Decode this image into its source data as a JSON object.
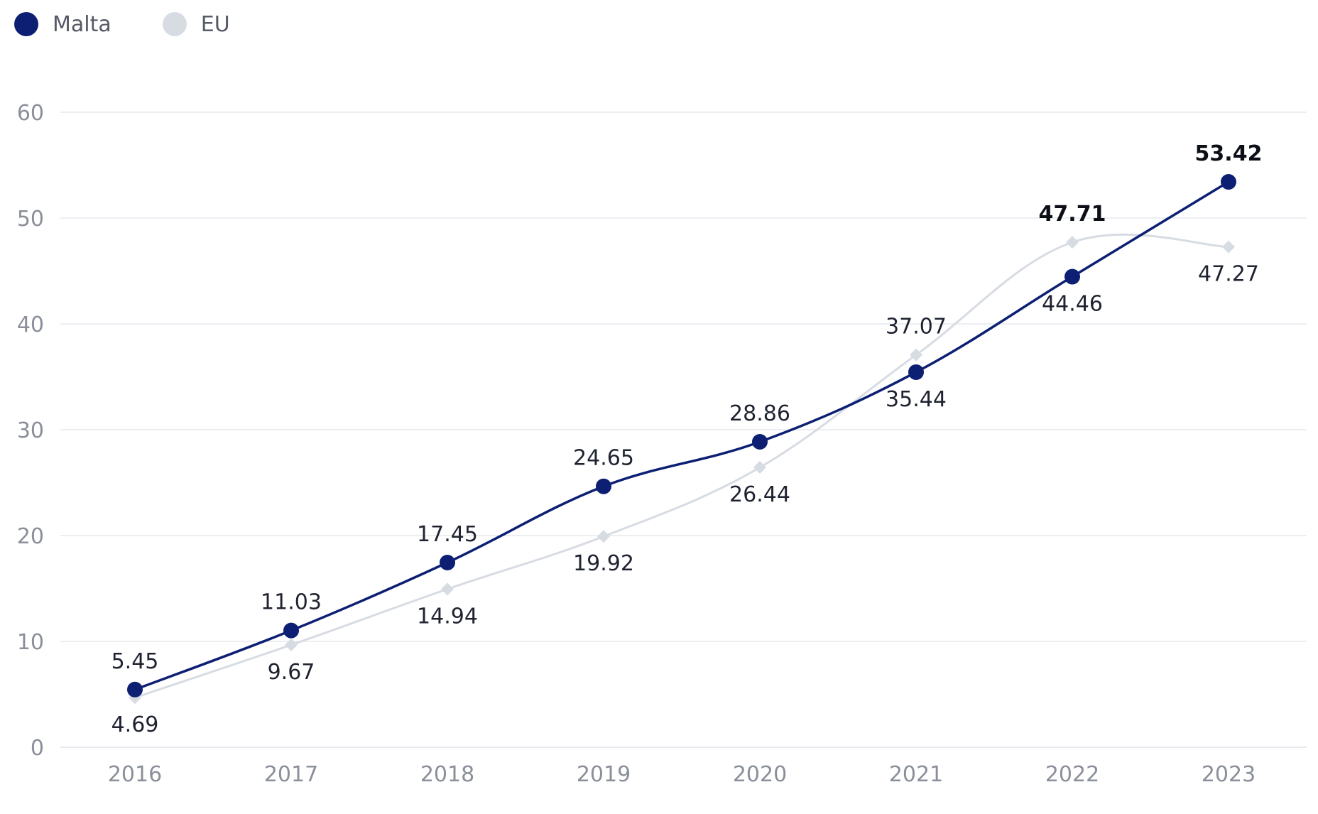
{
  "colors": {
    "malta": "#0c1f73",
    "eu": "#d7dce3",
    "grid": "#e6e9ee",
    "axis_text": "#8a8f99",
    "label_text": "#1f2330"
  },
  "legend": [
    {
      "name": "Malta",
      "color": "#0c1f73"
    },
    {
      "name": "EU",
      "color": "#d7dce3"
    }
  ],
  "chart_data": {
    "type": "line",
    "title": "",
    "xlabel": "",
    "ylabel": "",
    "x": [
      "2016",
      "2017",
      "2018",
      "2019",
      "2020",
      "2021",
      "2022",
      "2023"
    ],
    "ylim": [
      0,
      60
    ],
    "yticks": [
      0,
      10,
      20,
      30,
      40,
      50,
      60
    ],
    "grid": true,
    "legend_position": "top-left",
    "series": [
      {
        "name": "Malta",
        "marker": "circle",
        "color": "#0c1f73",
        "values": [
          5.45,
          11.03,
          17.45,
          24.65,
          28.86,
          35.44,
          44.46,
          53.42
        ],
        "labels": [
          "5.45",
          "11.03",
          "17.45",
          "24.65",
          "28.86",
          "35.44",
          "44.46",
          "53.42"
        ],
        "label_positions": [
          "above",
          "above",
          "above",
          "above",
          "above",
          "below",
          "below",
          "above"
        ],
        "label_bold": [
          false,
          false,
          false,
          false,
          false,
          false,
          false,
          true
        ]
      },
      {
        "name": "EU",
        "marker": "diamond",
        "color": "#d7dce3",
        "values": [
          4.69,
          9.67,
          14.94,
          19.92,
          26.44,
          37.07,
          47.71,
          47.27
        ],
        "labels": [
          "4.69",
          "9.67",
          "14.94",
          "19.92",
          "26.44",
          "37.07",
          "47.71",
          "47.27"
        ],
        "label_positions": [
          "below",
          "below",
          "below",
          "below",
          "below",
          "above",
          "above",
          "below"
        ],
        "label_bold": [
          false,
          false,
          false,
          false,
          false,
          false,
          true,
          false
        ]
      }
    ]
  }
}
